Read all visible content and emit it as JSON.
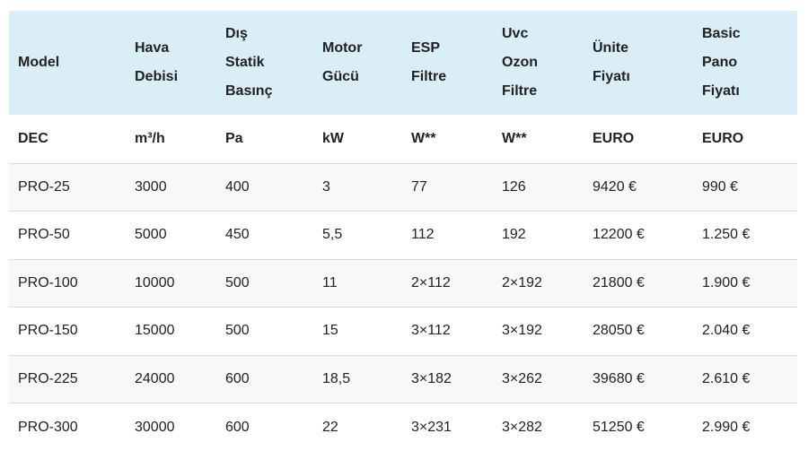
{
  "table": {
    "header": [
      [
        "Model"
      ],
      [
        "Hava",
        "Debisi"
      ],
      [
        "Dış",
        "Statik",
        "Basınç"
      ],
      [
        "Motor",
        "Gücü"
      ],
      [
        "ESP",
        "Filtre"
      ],
      [
        "Uvc",
        "Ozon",
        "Filtre"
      ],
      [
        "Ünite",
        "Fiyatı"
      ],
      [
        "Basic",
        "Pano",
        "Fiyatı"
      ]
    ],
    "units": [
      "DEC",
      "m³/h",
      "Pa",
      "kW",
      "W**",
      "W**",
      "EURO",
      "EURO"
    ],
    "rows": [
      [
        "PRO-25",
        "3000",
        "400",
        "3",
        "77",
        "126",
        "9420 €",
        "990 €"
      ],
      [
        "PRO-50",
        "5000",
        "450",
        "5,5",
        "112",
        "192",
        "12200 €",
        "1.250 €"
      ],
      [
        "PRO-100",
        "10000",
        "500",
        "11",
        "2×112",
        "2×192",
        "21800 €",
        "1.900 €"
      ],
      [
        "PRO-150",
        "15000",
        "500",
        "15",
        "3×112",
        "3×192",
        "28050 €",
        "2.040 €"
      ],
      [
        "PRO-225",
        "24000",
        "600",
        "18,5",
        "3×182",
        "3×262",
        "39680 €",
        "2.610 €"
      ],
      [
        "PRO-300",
        "30000",
        "600",
        "22",
        "3×231",
        "3×282",
        "51250 €",
        "2.990 €"
      ]
    ]
  }
}
